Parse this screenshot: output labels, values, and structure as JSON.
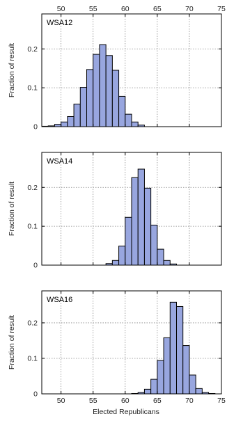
{
  "chart_data": [
    {
      "type": "bar",
      "title": "WSA12",
      "xlabel": "",
      "ylabel": "Fraction of result",
      "xlim": [
        47,
        75
      ],
      "ylim": [
        0,
        0.29
      ],
      "x_ticks": [
        50,
        55,
        60,
        65,
        70,
        75
      ],
      "y_ticks": [
        0,
        0.1,
        0.2
      ],
      "x_tick_labels_position": "top",
      "grid": true,
      "bin_width": 1,
      "x": [
        47,
        48,
        49,
        50,
        51,
        52,
        53,
        54,
        55,
        56,
        57,
        58,
        59,
        60,
        61,
        62
      ],
      "values": [
        0.001,
        0.002,
        0.006,
        0.012,
        0.026,
        0.058,
        0.101,
        0.147,
        0.186,
        0.211,
        0.183,
        0.145,
        0.078,
        0.032,
        0.012,
        0.004
      ]
    },
    {
      "type": "bar",
      "title": "WSA14",
      "xlabel": "",
      "ylabel": "Fraction of result",
      "xlim": [
        47,
        75
      ],
      "ylim": [
        0,
        0.29
      ],
      "x_ticks": [
        50,
        55,
        60,
        65,
        70,
        75
      ],
      "y_ticks": [
        0,
        0.1,
        0.2
      ],
      "grid": true,
      "bin_width": 1,
      "x": [
        57,
        58,
        59,
        60,
        61,
        62,
        63,
        64,
        65,
        66,
        67
      ],
      "values": [
        0.004,
        0.012,
        0.049,
        0.123,
        0.225,
        0.247,
        0.198,
        0.103,
        0.041,
        0.012,
        0.003
      ]
    },
    {
      "type": "bar",
      "title": "WSA16",
      "xlabel": "Elected Republicans",
      "ylabel": "Fraction of result",
      "xlim": [
        47,
        75
      ],
      "ylim": [
        0,
        0.29
      ],
      "x_ticks": [
        50,
        55,
        60,
        65,
        70,
        75
      ],
      "y_ticks": [
        0,
        0.1,
        0.2
      ],
      "x_tick_labels_position": "bottom",
      "grid": true,
      "bin_width": 1,
      "x": [
        61,
        62,
        63,
        64,
        65,
        66,
        67,
        68,
        69,
        70,
        71,
        72,
        73
      ],
      "values": [
        0.001,
        0.004,
        0.013,
        0.041,
        0.094,
        0.158,
        0.258,
        0.246,
        0.136,
        0.053,
        0.015,
        0.004,
        0.001
      ]
    }
  ],
  "style": {
    "bar_fill": "#98A6DF",
    "bar_stroke": "#000000",
    "grid_color": "#888888",
    "axis_color": "#000000"
  }
}
